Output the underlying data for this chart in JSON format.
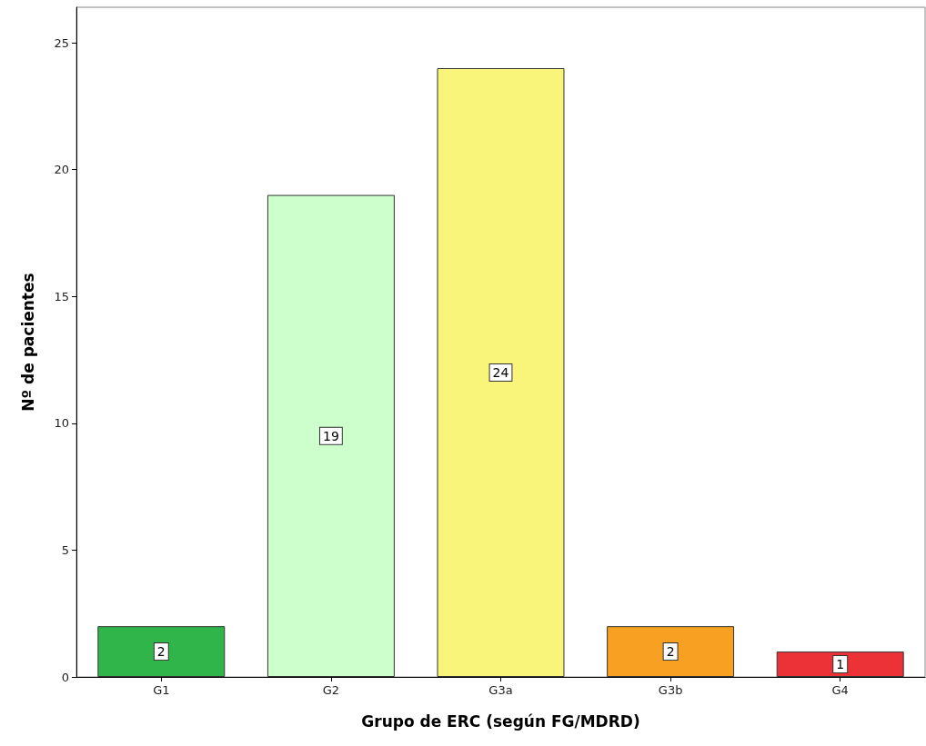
{
  "chart_data": {
    "type": "bar",
    "xlabel": "Grupo de ERC (según FG/MDRD)",
    "ylabel": "Nº de pacientes",
    "categories": [
      "G1",
      "G2",
      "G3a",
      "G3b",
      "G4"
    ],
    "values": [
      2,
      19,
      24,
      2,
      1
    ],
    "colors": [
      "#2fb54a",
      "#ccffcc",
      "#f8f57a",
      "#f7a021",
      "#ec3237"
    ],
    "ylim": [
      0,
      26.4
    ],
    "yticks": [
      0,
      5,
      10,
      15,
      20,
      25
    ],
    "grid": false,
    "data_labels": true
  }
}
